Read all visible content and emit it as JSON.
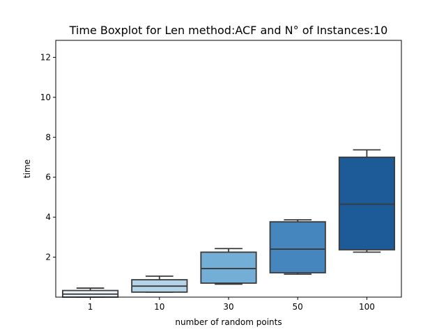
{
  "chart_data": {
    "type": "boxplot",
    "title": "Time Boxplot for Len method:ACF and N° of Instances:10",
    "xlabel": "number of random points",
    "ylabel": "time",
    "ylim": [
      0,
      12.85
    ],
    "yticks": [
      2,
      4,
      6,
      8,
      10,
      12
    ],
    "grid": false,
    "categories": [
      "1",
      "10",
      "30",
      "50",
      "100"
    ],
    "boxes": [
      {
        "category": "1",
        "whisker_low": 0.0,
        "q1": 0.0,
        "median": 0.15,
        "q3": 0.33,
        "whisker_high": 0.45,
        "color": "#edf4fb"
      },
      {
        "category": "10",
        "whisker_low": 0.25,
        "q1": 0.25,
        "median": 0.55,
        "q3": 0.87,
        "whisker_high": 1.05,
        "color": "#b5d3e8"
      },
      {
        "category": "30",
        "whisker_low": 0.65,
        "q1": 0.7,
        "median": 1.43,
        "q3": 2.25,
        "whisker_high": 2.43,
        "color": "#72aed6"
      },
      {
        "category": "50",
        "whisker_low": 1.15,
        "q1": 1.22,
        "median": 2.4,
        "q3": 3.77,
        "whisker_high": 3.87,
        "color": "#4486bd"
      },
      {
        "category": "100",
        "whisker_low": 2.25,
        "q1": 2.37,
        "median": 4.65,
        "q3": 7.0,
        "whisker_high": 7.37,
        "color": "#1d5b98"
      }
    ]
  }
}
